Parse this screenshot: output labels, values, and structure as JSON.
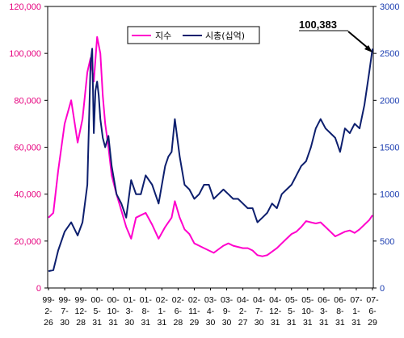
{
  "chart_data": {
    "type": "line",
    "grid": false,
    "legend_position": "top-center",
    "categories": [
      [
        "99-",
        "2-",
        "26"
      ],
      [
        "99-",
        "7-",
        "30"
      ],
      [
        "99-",
        "12-",
        "28"
      ],
      [
        "00-",
        "5-",
        "31"
      ],
      [
        "00-",
        "10-",
        "31"
      ],
      [
        "01-",
        "3-",
        "30"
      ],
      [
        "01-",
        "8-",
        "31"
      ],
      [
        "02-",
        "1-",
        "31"
      ],
      [
        "02-",
        "6-",
        "28"
      ],
      [
        "02-",
        "11-",
        "29"
      ],
      [
        "03-",
        "4-",
        "30"
      ],
      [
        "03-",
        "9-",
        "30"
      ],
      [
        "04-",
        "2-",
        "27"
      ],
      [
        "04-",
        "7-",
        "30"
      ],
      [
        "04-",
        "12-",
        "31"
      ],
      [
        "05-",
        "5-",
        "31"
      ],
      [
        "05-",
        "10-",
        "31"
      ],
      [
        "06-",
        "3-",
        "31"
      ],
      [
        "06-",
        "8-",
        "31"
      ],
      [
        "07-",
        "1-",
        "31"
      ],
      [
        "07-",
        "6-",
        "29"
      ]
    ],
    "left_axis": {
      "ticks": [
        "0",
        "20,000",
        "40,000",
        "60,000",
        "80,000",
        "100,000",
        "120,000"
      ],
      "range": [
        0,
        120000
      ],
      "color": "#e6007e"
    },
    "right_axis": {
      "ticks": [
        "0",
        "500",
        "1000",
        "1500",
        "2000",
        "2500",
        "3000"
      ],
      "range": [
        0,
        3000
      ],
      "color": "#1a3cb0"
    },
    "series": [
      {
        "name": "지수",
        "axis": "left",
        "color": "#ff00cc",
        "x": [
          0,
          0.3,
          0.6,
          1.0,
          1.4,
          1.8,
          2.1,
          2.4,
          2.6,
          2.8,
          3.0,
          3.2,
          3.35,
          3.5,
          3.7,
          3.9,
          4.2,
          4.5,
          4.8,
          5.1,
          5.4,
          5.7,
          6.0,
          6.4,
          6.8,
          7.2,
          7.4,
          7.6,
          7.8,
          8.1,
          8.4,
          8.7,
          9.0,
          9.3,
          9.6,
          9.9,
          10.2,
          10.5,
          10.8,
          11.1,
          11.4,
          11.7,
          12.0,
          12.3,
          12.6,
          12.9,
          13.2,
          13.5,
          13.8,
          14.1,
          14.4,
          14.7,
          15.0,
          15.3,
          15.6,
          15.9,
          16.2,
          16.5,
          16.8,
          17.1,
          17.4,
          17.7,
          18.0,
          18.3,
          18.6,
          18.9,
          19.2,
          19.5,
          19.8,
          20.0
        ],
        "values": [
          30000,
          32000,
          50000,
          70000,
          80000,
          62000,
          72000,
          92000,
          98000,
          88000,
          107000,
          100000,
          82000,
          70000,
          60000,
          48000,
          40000,
          33000,
          26000,
          21000,
          30000,
          31000,
          32000,
          27000,
          21000,
          26000,
          28000,
          30000,
          37000,
          30000,
          25000,
          23000,
          19000,
          18000,
          17000,
          16000,
          15000,
          16500,
          18000,
          19000,
          18000,
          17500,
          17000,
          17000,
          16000,
          14000,
          13500,
          14000,
          15500,
          17000,
          19000,
          21000,
          23000,
          24000,
          26000,
          28500,
          28000,
          27500,
          28000,
          26000,
          24000,
          22000,
          23000,
          24000,
          24500,
          23500,
          25000,
          27000,
          29000,
          31000
        ]
      },
      {
        "name": "시총(십억)",
        "axis": "right",
        "color": "#0d1f6e",
        "x": [
          0,
          0.3,
          0.6,
          1.0,
          1.4,
          1.8,
          2.1,
          2.4,
          2.6,
          2.7,
          2.8,
          2.9,
          3.0,
          3.1,
          3.2,
          3.35,
          3.5,
          3.7,
          3.9,
          4.2,
          4.5,
          4.8,
          5.1,
          5.4,
          5.7,
          6.0,
          6.4,
          6.8,
          7.2,
          7.4,
          7.6,
          7.8,
          8.1,
          8.4,
          8.7,
          9.0,
          9.3,
          9.6,
          9.9,
          10.2,
          10.5,
          10.8,
          11.1,
          11.4,
          11.7,
          12.0,
          12.3,
          12.6,
          12.9,
          13.2,
          13.5,
          13.8,
          14.1,
          14.4,
          14.7,
          15.0,
          15.3,
          15.6,
          15.9,
          16.2,
          16.5,
          16.8,
          17.1,
          17.4,
          17.7,
          18.0,
          18.3,
          18.6,
          18.9,
          19.2,
          19.5,
          19.8,
          20.0
        ],
        "values": [
          180,
          190,
          400,
          600,
          700,
          560,
          700,
          1100,
          2400,
          2550,
          1650,
          2100,
          2200,
          2050,
          1800,
          1600,
          1500,
          1620,
          1300,
          1000,
          900,
          750,
          1150,
          1000,
          1000,
          1200,
          1100,
          900,
          1300,
          1400,
          1450,
          1800,
          1400,
          1100,
          1050,
          950,
          1000,
          1100,
          1100,
          950,
          1000,
          1050,
          1000,
          950,
          950,
          900,
          850,
          850,
          700,
          750,
          800,
          900,
          850,
          1000,
          1050,
          1100,
          1200,
          1300,
          1350,
          1500,
          1700,
          1800,
          1700,
          1650,
          1600,
          1450,
          1700,
          1650,
          1750,
          1700,
          1950,
          2300,
          2550
        ]
      }
    ],
    "annotation": "100,383"
  }
}
